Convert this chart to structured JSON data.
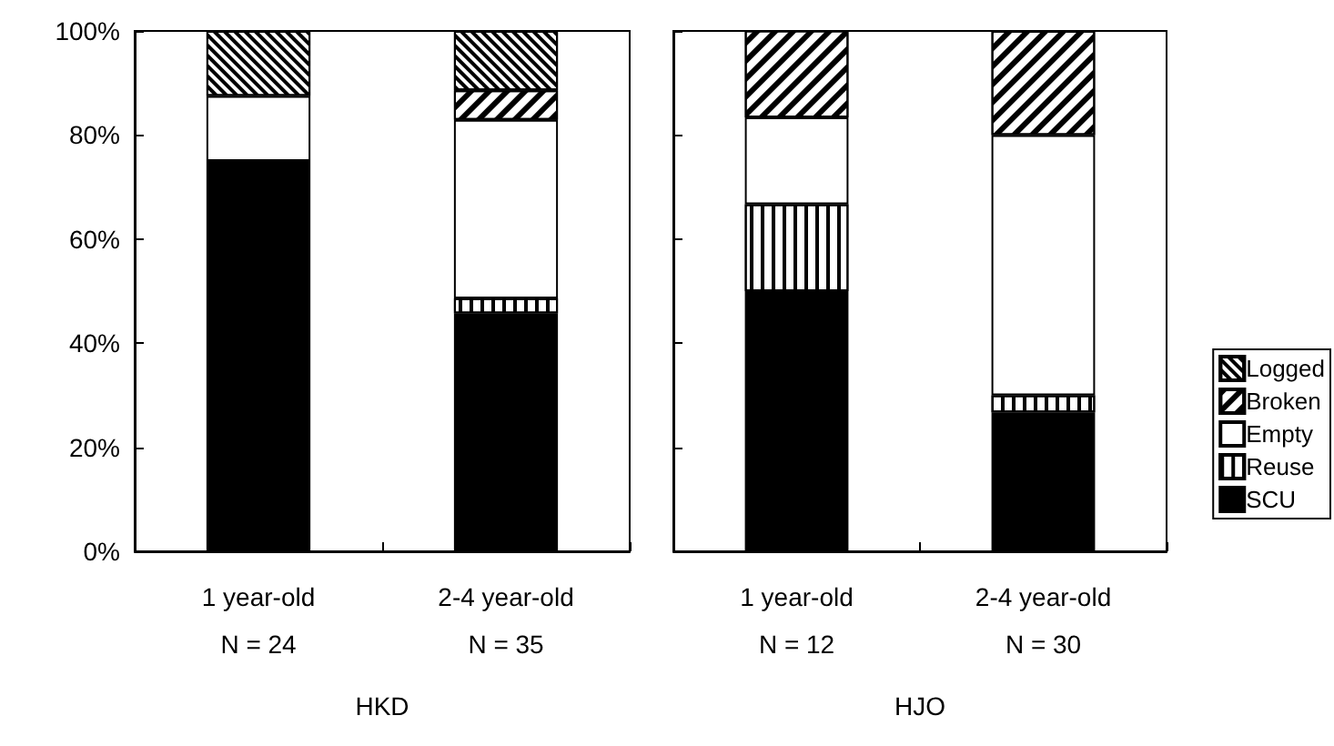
{
  "chart_data": [
    {
      "type": "bar",
      "stacked": true,
      "xlabel": "HKD",
      "categories": [
        "1 year-old\nN = 24",
        "2-4 year-old\nN = 35"
      ],
      "series": [
        {
          "color": "#000000",
          "values": [
            75,
            45.7
          ]
        },
        {
          "color": "#ffffff",
          "values": [
            null,
            2.9
          ]
        },
        {
          "color": "#ffffff",
          "values": [
            12.5,
            34.3
          ]
        },
        {
          "color": "#ffffff",
          "values": [
            null,
            5.7
          ]
        },
        {
          "color": "#ffffff",
          "values": [
            12.5,
            11.4
          ]
        }
      ],
      "ylim": [
        0,
        100
      ],
      "yticks": [
        {
          "value": 0,
          "label": "0%"
        },
        {
          "value": 20,
          "label": "20%"
        },
        {
          "value": 40,
          "label": "40%"
        },
        {
          "value": 60,
          "label": "60%"
        },
        {
          "value": 80,
          "label": "80%"
        },
        {
          "value": 100,
          "label": "100%"
        }
      ],
      "grid": false,
      "legend": false
    },
    {
      "type": "bar",
      "stacked": true,
      "xlabel": "HJO",
      "categories": [
        "1 year-old\nN = 12",
        "2-4 year-old\nN = 30"
      ],
      "series": [
        {
          "name": "SCU",
          "color": "#000000",
          "values": [
            50,
            26.7
          ]
        },
        {
          "name": "Reuse",
          "color": "#ffffff",
          "values": [
            16.7,
            3.3
          ]
        },
        {
          "name": "Empty",
          "color": "#ffffff",
          "values": [
            16.7,
            50
          ]
        },
        {
          "name": "Broken",
          "color": "#ffffff",
          "values": [
            16.7,
            20
          ]
        },
        {
          "name": "Logged",
          "color": "#ffffff",
          "values": [
            null,
            null
          ]
        }
      ],
      "ylim": [
        0,
        100
      ],
      "yticks": [
        0,
        20,
        40,
        60,
        80,
        100
      ],
      "grid": false,
      "legend": "right",
      "tick_labels": "x"
    }
  ]
}
